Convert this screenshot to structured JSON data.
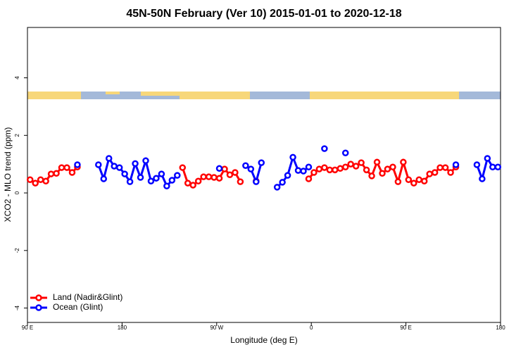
{
  "chart_data": {
    "type": "line",
    "title": "45N-50N February (Ver 10)   2015-01-01 to 2020-12-18",
    "x_label": "Longitude (deg E)",
    "y_label": "XCO2 - MLO trend (ppm)",
    "x": [
      92.5,
      97.5,
      102.5,
      107.5,
      112.5,
      117.5,
      122.5,
      127.5,
      132.5,
      137.5,
      142.5,
      147.5,
      152.5,
      157.5,
      162.5,
      167.5,
      172.5,
      177.5,
      182.5,
      187.5,
      192.5,
      197.5,
      202.5,
      207.5,
      212.5,
      217.5,
      222.5,
      227.5,
      232.5,
      237.5,
      242.5,
      247.5,
      252.5,
      257.5,
      262.5,
      267.5,
      272.5,
      277.5,
      282.5,
      287.5,
      292.5,
      297.5,
      302.5,
      307.5,
      312.5,
      317.5,
      322.5,
      327.5,
      332.5,
      337.5,
      342.5,
      347.5,
      352.5,
      357.5,
      362.5,
      367.5,
      372.5,
      377.5,
      382.5,
      387.5,
      392.5,
      397.5,
      402.5,
      407.5,
      412.5,
      417.5,
      422.5,
      427.5,
      432.5,
      437.5,
      442.5,
      447.5,
      452.5,
      457.5,
      462.5,
      467.5,
      472.5,
      477.5,
      482.5,
      487.5,
      492.5,
      497.5,
      502.5,
      507.5,
      512.5,
      517.5,
      522.5,
      527.5,
      532.5,
      537.5
    ],
    "series": [
      {
        "name": "Land (Nadir&Glint)",
        "color": "#ff0000",
        "values": [
          0.46,
          0.34,
          0.46,
          0.41,
          0.66,
          0.68,
          0.88,
          0.88,
          0.71,
          0.9,
          null,
          null,
          null,
          null,
          null,
          null,
          null,
          null,
          null,
          null,
          null,
          null,
          null,
          null,
          null,
          null,
          null,
          null,
          null,
          0.88,
          0.34,
          0.27,
          0.41,
          0.56,
          0.56,
          0.54,
          0.51,
          0.83,
          0.63,
          0.71,
          0.39,
          null,
          null,
          0.41,
          null,
          null,
          null,
          null,
          null,
          null,
          null,
          null,
          null,
          0.49,
          0.71,
          0.83,
          0.88,
          0.8,
          0.8,
          0.85,
          0.9,
          1.0,
          0.93,
          1.05,
          0.8,
          0.59,
          1.07,
          0.68,
          0.83,
          0.9,
          0.39,
          1.07,
          0.46,
          0.34,
          0.46,
          0.41,
          0.66,
          0.71,
          0.88,
          0.88,
          0.71,
          0.9,
          null,
          null,
          null,
          null,
          null,
          null,
          null,
          null
        ]
      },
      {
        "name": "Ocean (Glint)",
        "color": "#0000ff",
        "values": [
          null,
          null,
          null,
          null,
          null,
          null,
          null,
          null,
          null,
          0.98,
          null,
          null,
          null,
          0.98,
          0.49,
          1.2,
          0.93,
          0.88,
          0.66,
          0.39,
          1.02,
          0.54,
          1.12,
          0.41,
          0.51,
          0.66,
          0.24,
          0.44,
          0.61,
          null,
          null,
          null,
          null,
          null,
          null,
          null,
          0.85,
          null,
          null,
          null,
          null,
          0.95,
          0.83,
          0.39,
          1.05,
          null,
          null,
          0.2,
          0.37,
          0.61,
          1.24,
          0.78,
          0.76,
          0.9,
          null,
          null,
          1.54,
          null,
          null,
          null,
          1.39,
          null,
          null,
          null,
          null,
          null,
          null,
          null,
          null,
          null,
          null,
          null,
          null,
          null,
          null,
          null,
          null,
          null,
          null,
          null,
          null,
          0.98,
          null,
          null,
          null,
          0.98,
          0.49,
          1.2,
          0.9,
          0.9
        ]
      }
    ],
    "xlim": [
      90,
      540
    ],
    "ylim": [
      -4.5,
      5.75
    ],
    "xticks": [
      {
        "value": 90,
        "label": "90 E"
      },
      {
        "value": 180,
        "label": "180"
      },
      {
        "value": 270,
        "label": "90 W"
      },
      {
        "value": 360,
        "label": "0"
      },
      {
        "value": 450,
        "label": "90 E"
      },
      {
        "value": 540,
        "label": "180"
      }
    ],
    "yticks": [
      -4,
      -2,
      0,
      2,
      4
    ],
    "legend": "bottom-left"
  }
}
